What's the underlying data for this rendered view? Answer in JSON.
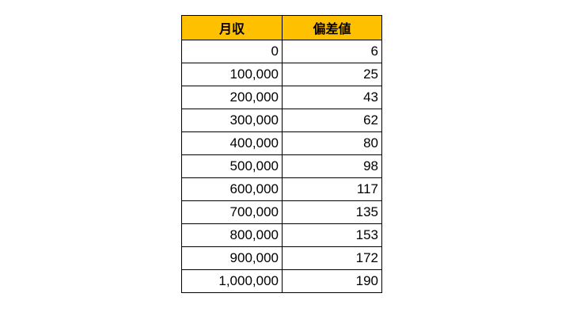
{
  "colors": {
    "header_background": "#FFC000"
  },
  "table": {
    "headers": [
      "月収",
      "偏差値"
    ],
    "rows": [
      [
        "0",
        "6"
      ],
      [
        "100,000",
        "25"
      ],
      [
        "200,000",
        "43"
      ],
      [
        "300,000",
        "62"
      ],
      [
        "400,000",
        "80"
      ],
      [
        "500,000",
        "98"
      ],
      [
        "600,000",
        "117"
      ],
      [
        "700,000",
        "135"
      ],
      [
        "800,000",
        "153"
      ],
      [
        "900,000",
        "172"
      ],
      [
        "1,000,000",
        "190"
      ]
    ]
  }
}
